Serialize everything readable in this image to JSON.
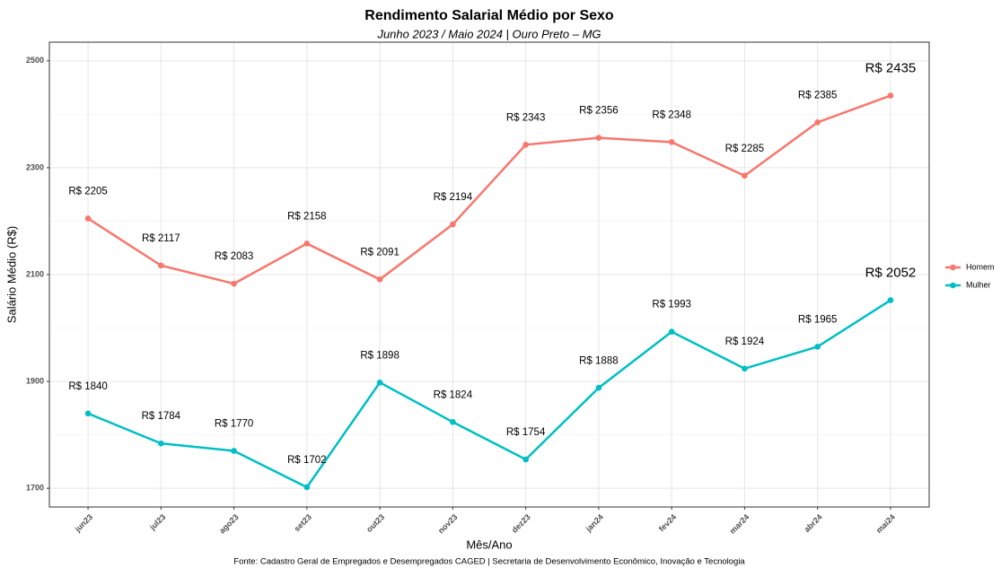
{
  "chart_data": {
    "type": "line",
    "title": "Rendimento Salarial Médio por Sexo",
    "subtitle": "Junho 2023 / Maio 2024 | Ouro Preto – MG",
    "x_label": "Mês/Ano",
    "y_label": "Salário Médio (R$)",
    "caption": "Fonte: Cadastro Geral de Empregados e Desempregados CAGED | Secretaria de Desenvolvimento Econômico, Inovação e Tecnologia",
    "categories": [
      "jun23",
      "jul23",
      "ago23",
      "set23",
      "out23",
      "nov23",
      "dez23",
      "jan24",
      "fev24",
      "mar24",
      "abr24",
      "mai24"
    ],
    "series": [
      {
        "name": "Homem",
        "color": "#f8766d",
        "values": [
          2205,
          2117,
          2083,
          2158,
          2091,
          2194,
          2343,
          2356,
          2348,
          2285,
          2385,
          2435
        ],
        "value_labels": [
          "R$ 2205",
          "R$ 2117",
          "R$ 2083",
          "R$ 2158",
          "R$ 2091",
          "R$ 2194",
          "R$ 2343",
          "R$ 2356",
          "R$ 2348",
          "R$ 2285",
          "R$ 2385",
          "R$ 2435"
        ]
      },
      {
        "name": "Mulher",
        "color": "#00bfc4",
        "values": [
          1840,
          1784,
          1770,
          1702,
          1898,
          1824,
          1754,
          1888,
          1993,
          1924,
          1965,
          2052
        ],
        "value_labels": [
          "R$ 1840",
          "R$ 1784",
          "R$ 1770",
          "R$ 1702",
          "R$ 1898",
          "R$ 1824",
          "R$ 1754",
          "R$ 1888",
          "R$ 1993",
          "R$ 1924",
          "R$ 1965",
          "R$ 2052"
        ]
      }
    ],
    "ylim": [
      1665,
      2535
    ],
    "yticks": [
      1700,
      1900,
      2100,
      2300,
      2500
    ],
    "minor_yticks": [
      1800,
      2000,
      2200,
      2400
    ],
    "grid": true,
    "legend": "right"
  }
}
